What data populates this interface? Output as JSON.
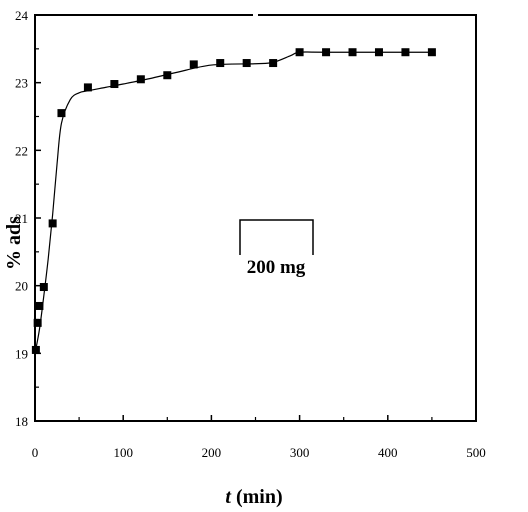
{
  "chart_data": {
    "type": "scatter",
    "xlabel_italic": "t",
    "xlabel_rest": " (min)",
    "ylabel": "% ads",
    "xlim": [
      0,
      500
    ],
    "ylim": [
      18,
      24
    ],
    "xticks": [
      0,
      100,
      200,
      300,
      400,
      500
    ],
    "yticks": [
      18,
      19,
      20,
      21,
      22,
      23,
      24
    ],
    "ytick_labels": [
      "18",
      "19",
      "20",
      "21",
      "22",
      "23",
      "24"
    ],
    "xtick_labels": [
      "0",
      "100",
      "200",
      "300",
      "400",
      "500"
    ],
    "annotation": "200 mg",
    "grid": false,
    "series": [
      {
        "marker": "square",
        "fit_line": true,
        "x": [
          1,
          3,
          5,
          10,
          20,
          30,
          60,
          90,
          120,
          150,
          180,
          210,
          240,
          270,
          300,
          330,
          360,
          390,
          420,
          450
        ],
        "y": [
          19.05,
          19.45,
          19.7,
          19.98,
          20.92,
          22.55,
          22.93,
          22.98,
          23.05,
          23.11,
          23.27,
          23.29,
          23.29,
          23.29,
          23.45,
          23.45,
          23.45,
          23.45,
          23.45,
          23.45
        ]
      }
    ],
    "fit_curve": {
      "x": [
        0,
        5,
        10,
        15,
        20,
        25,
        30,
        40,
        50,
        60,
        80,
        100,
        130,
        160,
        200,
        250,
        270,
        290,
        300,
        330,
        450
      ],
      "y": [
        19.0,
        19.35,
        19.85,
        20.4,
        21.05,
        21.8,
        22.4,
        22.75,
        22.85,
        22.88,
        22.93,
        22.98,
        23.06,
        23.15,
        23.26,
        23.28,
        23.3,
        23.4,
        23.45,
        23.45,
        23.45
      ]
    },
    "colors": {
      "marker": "#000000",
      "line": "#000000",
      "axis": "#000000"
    }
  }
}
